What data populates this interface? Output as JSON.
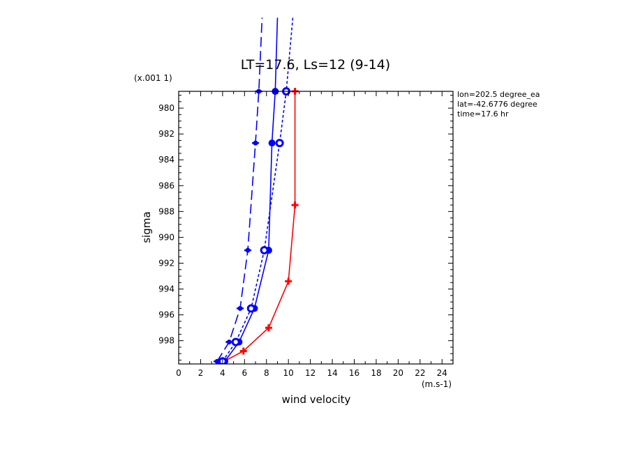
{
  "chart_data": {
    "type": "line",
    "title": "LT=17.6, Ls=12 (9-14)",
    "xlabel": "wind velocity",
    "ylabel": "sigma",
    "x_unit": "(m.s-1)",
    "y_scale": "(x.001 1)",
    "xlim": [
      0,
      25
    ],
    "ylim": [
      999.8,
      978.7
    ],
    "x_ticks": [
      "0",
      "2",
      "4",
      "6",
      "8",
      "10",
      "12",
      "14",
      "16",
      "18",
      "20",
      "22",
      "24"
    ],
    "y_ticks": [
      "980",
      "982",
      "984",
      "986",
      "988",
      "990",
      "992",
      "994",
      "996",
      "998"
    ],
    "y_tick_values": [
      980,
      982,
      984,
      986,
      988,
      990,
      992,
      994,
      996,
      998
    ],
    "x_tick_values": [
      0,
      2,
      4,
      6,
      8,
      10,
      12,
      14,
      16,
      18,
      20,
      22,
      24
    ],
    "annotations": [
      "lon=202.5 degree_ea",
      "lat=-42.6776 degree",
      "time=17.6 hr"
    ],
    "grid": false,
    "series": [
      {
        "color": "#ff0000",
        "style": "solid",
        "marker": "plus",
        "x": [
          3.8,
          5.9,
          8.2,
          10.0,
          10.6,
          10.6
        ],
        "y": [
          999.75,
          998.8,
          997.0,
          993.4,
          987.5,
          978.7
        ]
      },
      {
        "color": "#0000ff",
        "style": "longdash",
        "marker": "cross",
        "x": [
          3.5,
          4.6,
          5.6,
          6.3,
          7.0,
          7.3,
          7.6
        ],
        "y": [
          999.6,
          998.1,
          995.5,
          991.0,
          982.7,
          978.7,
          973.0
        ]
      },
      {
        "color": "#0000ff",
        "style": "solid",
        "marker": "dot",
        "x": [
          4.2,
          5.5,
          6.9,
          8.2,
          8.5,
          8.8,
          9.0
        ],
        "y": [
          999.6,
          998.1,
          995.5,
          991.0,
          982.7,
          978.7,
          973.0
        ]
      },
      {
        "color": "#0000ff",
        "style": "shortdash",
        "marker": "circle",
        "x": [
          4.0,
          5.2,
          6.6,
          7.8,
          9.2,
          9.8,
          10.4
        ],
        "y": [
          999.6,
          998.1,
          995.5,
          991.0,
          982.7,
          978.7,
          973.0
        ]
      }
    ]
  }
}
